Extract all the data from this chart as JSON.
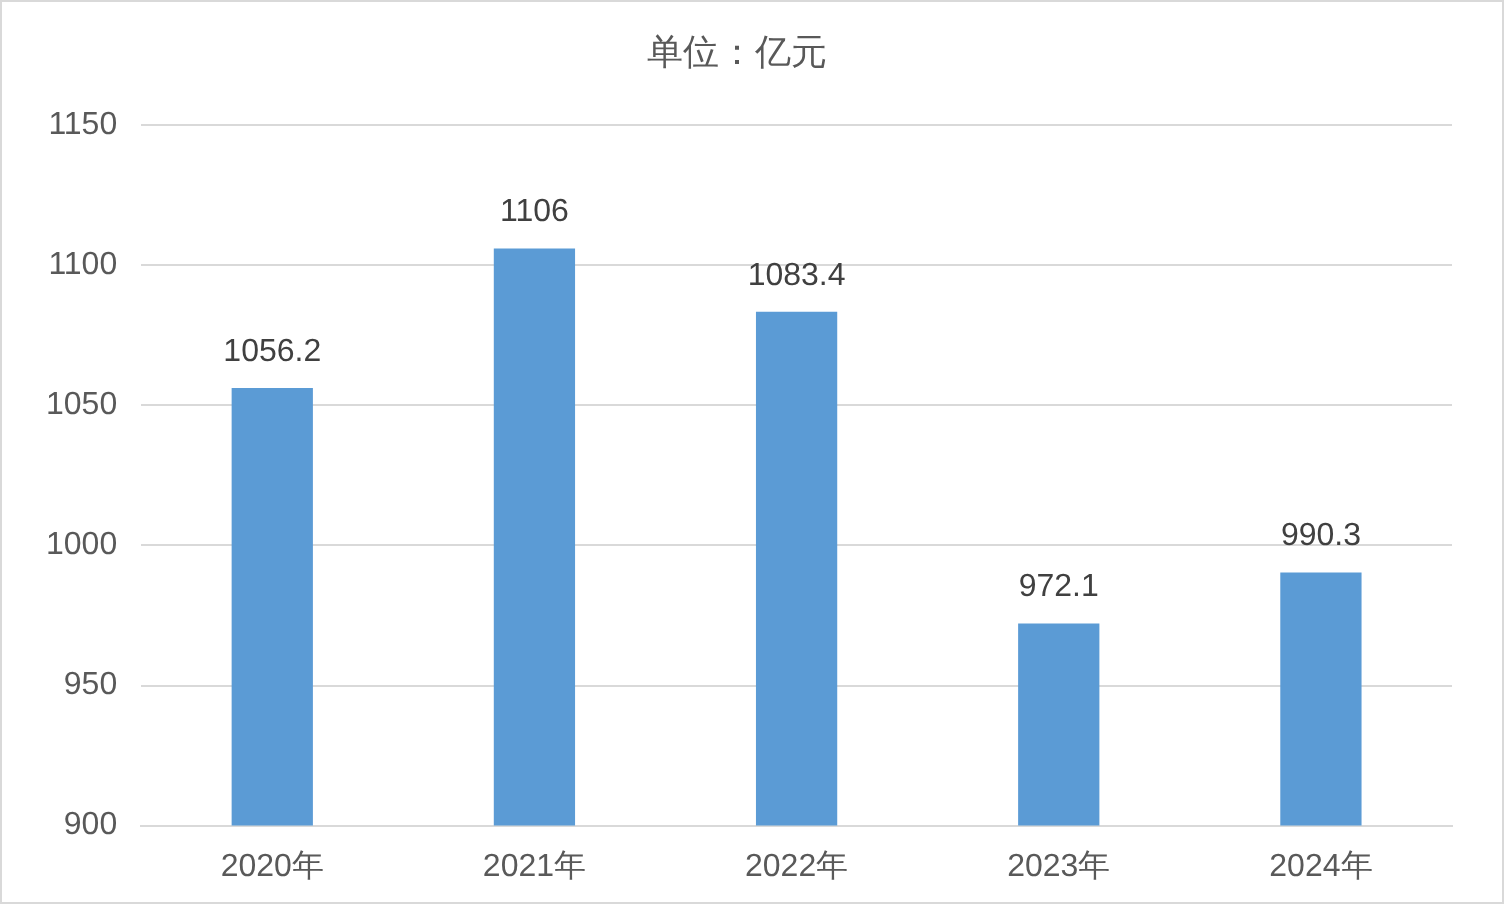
{
  "chart_data": {
    "type": "bar",
    "title": "单位：亿元",
    "categories": [
      "2020年",
      "2021年",
      "2022年",
      "2023年",
      "2024年"
    ],
    "values": [
      1056.2,
      1106,
      1083.4,
      972.1,
      990.3
    ],
    "color": "#5b9bd5",
    "ylim": [
      900,
      1150
    ],
    "yticks": [
      900,
      950,
      1000,
      1050,
      1100,
      1150
    ],
    "grid": "y",
    "data_labels": true,
    "legend": false
  }
}
